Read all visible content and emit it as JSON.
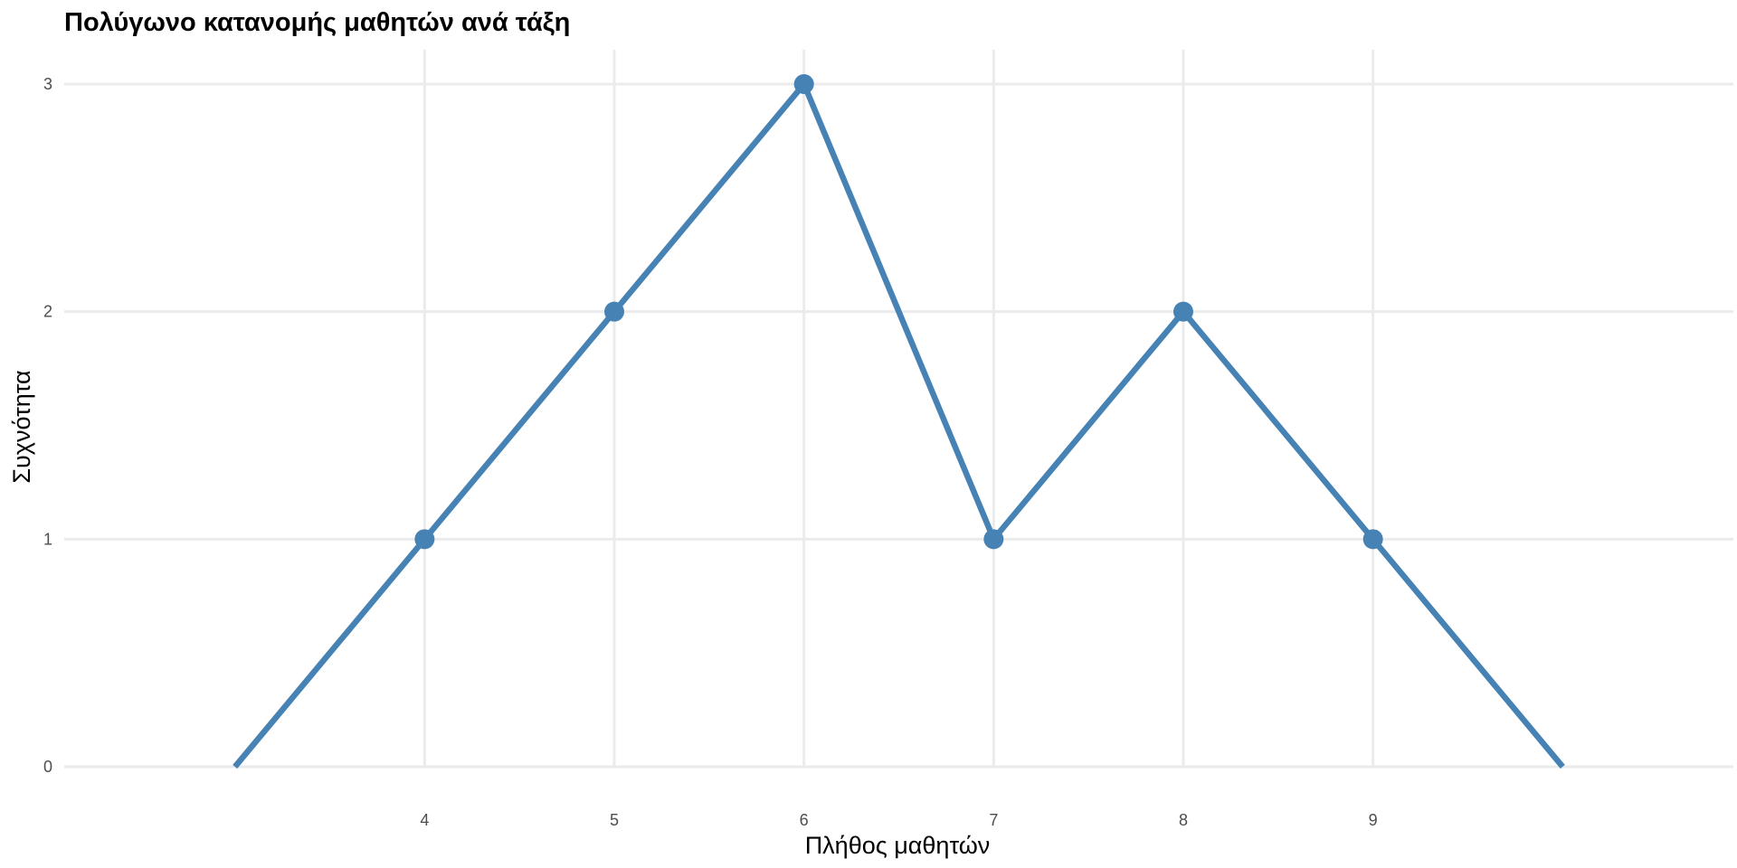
{
  "chart_data": {
    "type": "line",
    "title": "Πολύγωνο κατανομής μαθητών ανά τάξη",
    "xlabel": "Πλήθος μαθητών",
    "ylabel": "Συχνότητα",
    "x": [
      3,
      4,
      5,
      6,
      7,
      8,
      9,
      10
    ],
    "series": [
      {
        "values": [
          0,
          1,
          2,
          3,
          1,
          2,
          1,
          0
        ],
        "markers": [
          false,
          true,
          true,
          true,
          true,
          true,
          true,
          false
        ]
      }
    ],
    "x_ticks": [
      "4",
      "5",
      "6",
      "7",
      "8",
      "9"
    ],
    "y_ticks": [
      "0",
      "1",
      "2",
      "3"
    ],
    "xlim": [
      2.1,
      10.9
    ],
    "ylim": [
      0,
      3
    ],
    "grid": true,
    "legend": "none",
    "colors": {
      "line": "#4682b4",
      "grid": "#ebebeb",
      "tick_text": "#4d4d4d"
    }
  }
}
